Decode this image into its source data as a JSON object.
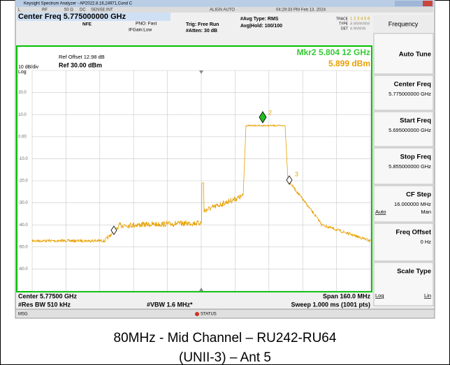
{
  "window": {
    "title": "Keysight Spectrum Analyzer - AP2022.8.16,24971,Cond C"
  },
  "status_row": [
    "L",
    "RF",
    "50 Ω",
    "DC",
    "SENSE:INT",
    "ALIGN AUTO",
    "04:29:33 PM Feb 13, 2024"
  ],
  "header": {
    "center_freq": "Center Freq 5.775000000 GHz",
    "nfe": "NFE",
    "pno": "PNO: Fast",
    "ifgain": "IFGain:Low",
    "trig": "Trig: Free Run",
    "atten": "#Atten: 30 dB",
    "avg_type": "#Avg Type: RMS",
    "avg_hold": "Avg|Hold: 100/100",
    "trace": "TRACE",
    "trace_nums": "1 2 3 4 5 6",
    "type": "TYPE",
    "type_val": "A WWWWW",
    "det": "DET",
    "det_val": "A NNNNN"
  },
  "plot": {
    "ref_offset": "Ref Offset 12.98 dB",
    "scale": "10 dB/div",
    "ref": "Ref 30.00 dBm",
    "log": "Log",
    "marker_readout": "Mkr2 5.804 12 GHz",
    "marker_value": "5.899 dBm",
    "y_labels": [
      "20.0",
      "10.0",
      "0.00",
      "-10.0",
      "-20.0",
      "-30.0",
      "-40.0",
      "-50.0",
      "-60.0"
    ],
    "marker_labels": [
      "2",
      "3"
    ]
  },
  "footer": {
    "center": "Center 5.77500 GHz",
    "res_bw": "#Res BW 510 kHz",
    "vbw": "#VBW 1.6 MHz*",
    "span": "Span 160.0 MHz",
    "sweep": "Sweep  1.000 ms (1001 pts)"
  },
  "menu": {
    "title": "Frequency",
    "buttons": [
      {
        "label": "Auto Tune"
      },
      {
        "label": "Center Freq",
        "value": "5.775000000 GHz"
      },
      {
        "label": "Start Freq",
        "value": "5.695000000 GHz"
      },
      {
        "label": "Stop Freq",
        "value": "5.855000000 GHz"
      },
      {
        "label": "CF Step",
        "value": "16.000000 MHz",
        "left": "Auto",
        "right": "Man"
      },
      {
        "label": "Freq Offset",
        "value": "0 Hz"
      },
      {
        "label": "Scale Type",
        "left": "Log",
        "right": "Lin"
      }
    ]
  },
  "msg": "MSG",
  "status": "STATUS",
  "caption": [
    "80MHz - Mid Channel – RU242-RU64",
    "(UNII-3) – Ant 5"
  ]
}
